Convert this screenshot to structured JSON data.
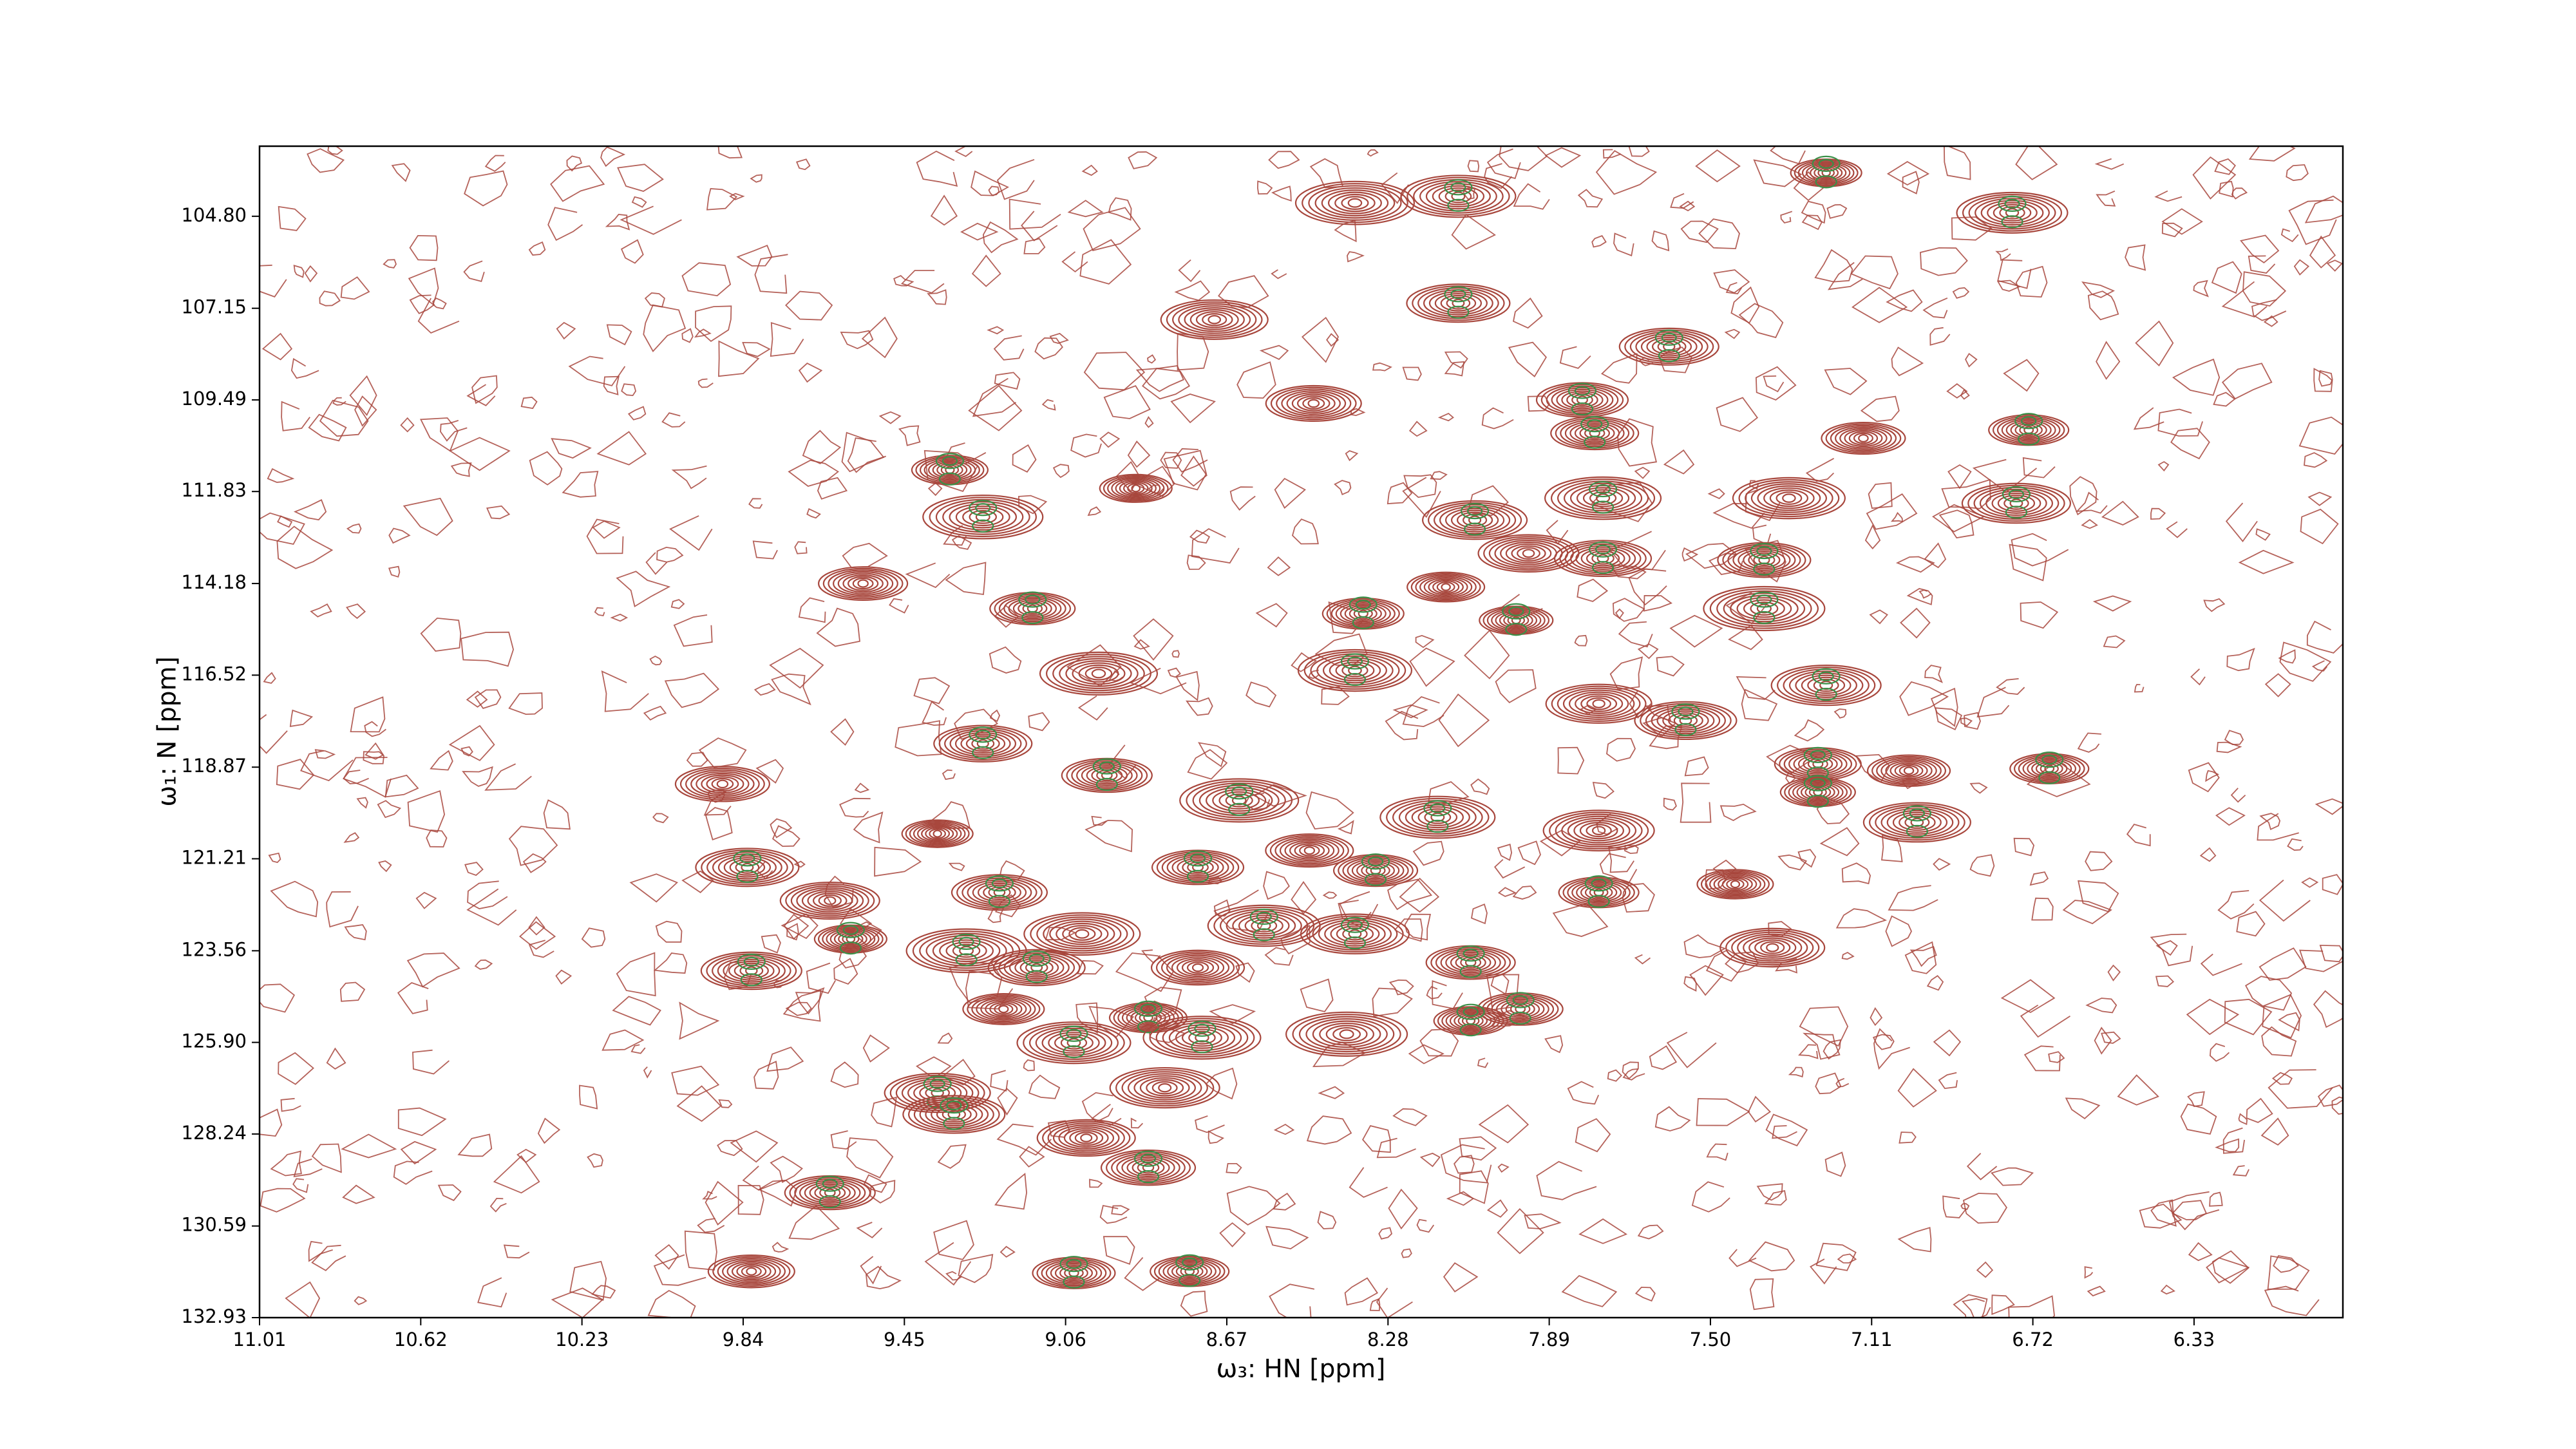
{
  "chart_data": {
    "type": "contour",
    "xlabel": "ω₃: HN [ppm]",
    "ylabel": "ω₁: N [ppm]",
    "xlim": [
      11.01,
      5.97
    ],
    "ylim": [
      103.01,
      132.93
    ],
    "xticks": [
      11.01,
      10.62,
      10.23,
      9.84,
      9.45,
      9.06,
      8.67,
      8.28,
      7.89,
      {
        "value": 7.5,
        "label": "7.50"
      },
      7.11,
      6.72,
      6.33
    ],
    "yticks": [
      {
        "value": 104.8,
        "label": "104.80"
      },
      107.15,
      109.49,
      111.83,
      114.18,
      116.52,
      118.87,
      121.21,
      123.56,
      {
        "value": 125.9,
        "label": "125.90"
      },
      128.24,
      130.59,
      132.93
    ],
    "colors": [
      "#a8473d",
      "#3a9048"
    ],
    "x": [
      7.22,
      8.36,
      8.11,
      6.77,
      8.7,
      8.11,
      7.6,
      8.46,
      7.81,
      7.78,
      7.13,
      6.73,
      9.34,
      8.89,
      9.26,
      7.76,
      7.31,
      6.76,
      8.07,
      7.94,
      7.76,
      7.37,
      9.55,
      9.14,
      8.34,
      8.14,
      7.97,
      7.37,
      8.98,
      8.36,
      7.22,
      7.77,
      7.56,
      9.26,
      9.89,
      8.96,
      7.24,
      7.02,
      6.68,
      7.24,
      9.37,
      8.64,
      8.16,
      7.77,
      7.0,
      9.83,
      9.63,
      9.22,
      8.74,
      8.47,
      8.31,
      7.77,
      7.44,
      9.58,
      9.3,
      9.02,
      8.58,
      8.36,
      7.35,
      9.82,
      9.13,
      8.74,
      8.08,
      7.96,
      9.21,
      8.86,
      8.08,
      8.38,
      8.73,
      9.04,
      8.82,
      9.37,
      9.33,
      9.01,
      8.86,
      9.63,
      9.82,
      9.04,
      8.76
    ],
    "y": [
      103.69,
      104.46,
      104.29,
      104.71,
      107.44,
      107.02,
      108.13,
      109.58,
      109.49,
      110.34,
      110.47,
      110.26,
      111.28,
      111.75,
      112.48,
      112.0,
      112.0,
      112.13,
      112.56,
      113.41,
      113.54,
      113.58,
      114.18,
      114.82,
      114.95,
      114.27,
      115.12,
      114.82,
      116.48,
      116.4,
      116.78,
      117.25,
      117.68,
      118.27,
      119.3,
      119.08,
      118.79,
      118.96,
      118.91,
      119.51,
      120.57,
      119.72,
      120.15,
      120.49,
      120.28,
      121.43,
      122.28,
      122.07,
      121.43,
      121.0,
      121.51,
      122.07,
      121.86,
      123.26,
      123.56,
      123.13,
      122.92,
      123.13,
      123.48,
      124.07,
      123.99,
      123.99,
      123.86,
      125.05,
      125.05,
      125.27,
      125.35,
      125.69,
      125.78,
      125.91,
      127.06,
      127.19,
      127.74,
      128.34,
      129.1,
      129.74,
      131.75,
      131.79,
      131.75
    ]
  }
}
